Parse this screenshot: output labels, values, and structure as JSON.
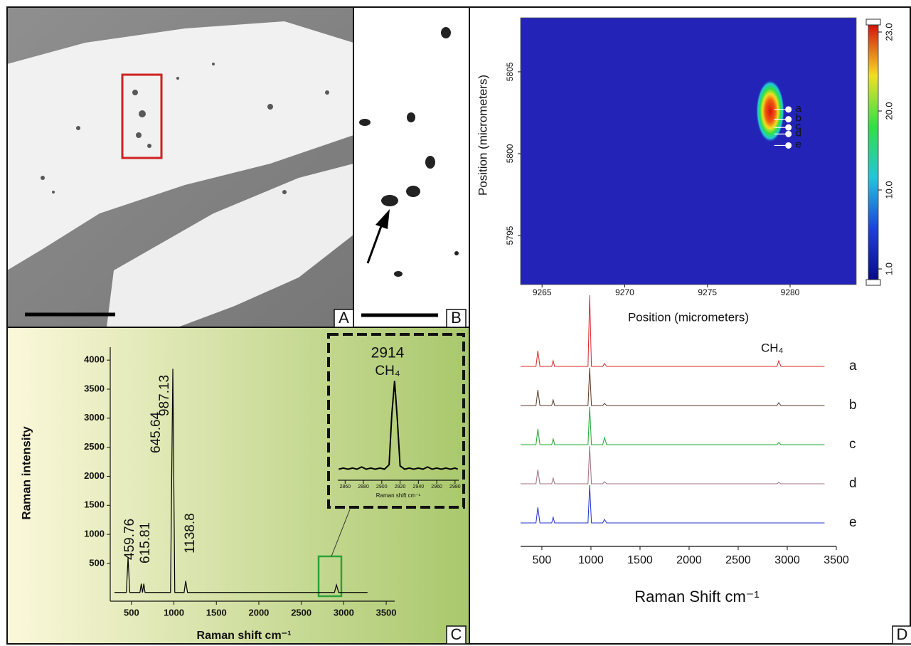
{
  "panels": [
    "A",
    "B",
    "C",
    "D"
  ],
  "chart_data": [
    {
      "type": "line",
      "xlabel": "Raman shift cm⁻¹",
      "ylabel": "Raman intensity",
      "xlim": [
        250,
        3600
      ],
      "ylim": [
        -150,
        4100
      ],
      "xticks": [
        500,
        1000,
        1500,
        2000,
        2500,
        3000,
        3500
      ],
      "yticks": [
        500,
        1000,
        1500,
        2000,
        2500,
        3000,
        3500,
        4000
      ],
      "x": [
        300,
        440,
        459.76,
        480,
        600,
        615.81,
        630,
        645.64,
        660,
        960,
        987.13,
        1010,
        1120,
        1138.8,
        1160,
        2890,
        2914,
        2940,
        3280
      ],
      "series": [
        {
          "color": "#000000",
          "values": [
            0,
            0,
            600,
            0,
            0,
            150,
            0,
            150,
            0,
            0,
            3850,
            0,
            0,
            200,
            0,
            0,
            130,
            0,
            0
          ]
        }
      ],
      "annotations": [
        "459.76",
        "615.81",
        "645.64",
        "987.13",
        "1138.8"
      ],
      "annotation_color": "#e0201b"
    },
    {
      "type": "line",
      "title": "2914",
      "subtitle": "CH₄",
      "xlabel": "Raman shift cm⁻¹",
      "xlim": [
        2852,
        2984
      ],
      "ylim": [
        0,
        1
      ],
      "xticks": [
        2860,
        2880,
        2900,
        2920,
        2940,
        2960,
        2980
      ],
      "x": [
        2853,
        2858,
        2863,
        2868,
        2873,
        2878,
        2883,
        2888,
        2893,
        2898,
        2903,
        2908,
        2911,
        2914,
        2917,
        2920,
        2925,
        2930,
        2935,
        2940,
        2945,
        2950,
        2955,
        2960,
        2965,
        2970,
        2975,
        2980,
        2983
      ],
      "series": [
        {
          "color": "#000000",
          "values": [
            0.1,
            0.11,
            0.1,
            0.11,
            0.1,
            0.12,
            0.1,
            0.11,
            0.1,
            0.11,
            0.1,
            0.14,
            0.6,
            0.9,
            0.55,
            0.13,
            0.1,
            0.11,
            0.1,
            0.11,
            0.1,
            0.12,
            0.1,
            0.11,
            0.1,
            0.11,
            0.1,
            0.11,
            0.1
          ]
        }
      ]
    },
    {
      "type": "heatmap",
      "xlabel": "Position (micrometers)",
      "ylabel": "Position (micrometers)",
      "xlim": [
        9263.7,
        9284
      ],
      "ylim": [
        5792,
        5808.3
      ],
      "xticks": [
        9265,
        9270,
        9275,
        9280
      ],
      "yticks": [
        5795,
        5800,
        5805
      ],
      "colorbar_ticks": [
        {
          "value": 1,
          "label": "1.0"
        },
        {
          "value": 10,
          "label": "10.0"
        },
        {
          "value": 20,
          "label": "20.0"
        },
        {
          "value": 23,
          "label": "23.0"
        }
      ],
      "background": 1,
      "peak": {
        "x": 9278.8,
        "y": 5802.6,
        "value": 23
      },
      "points": {
        "labels": [
          "a",
          "b",
          "c",
          "d",
          "e"
        ],
        "x": [
          9279.9,
          9279.9,
          9279.9,
          9279.9,
          9279.9
        ],
        "y": [
          5802.7,
          5802.1,
          5801.6,
          5801.2,
          5800.5
        ]
      }
    },
    {
      "type": "line",
      "xlabel": "Raman Shift cm⁻¹",
      "annotation": "CH₄",
      "xlim": [
        283,
        3500
      ],
      "ylim": [
        0,
        100
      ],
      "xticks": [
        500,
        1000,
        1500,
        2000,
        2500,
        3000,
        3500
      ],
      "x": [
        283,
        440,
        459,
        480,
        600,
        615,
        630,
        970,
        987,
        1005,
        1120,
        1138,
        1160,
        2895,
        2914,
        2935,
        3380
      ],
      "series": [
        {
          "name": "a",
          "color": "#d9282b",
          "values": [
            0,
            0,
            22,
            0,
            0,
            8,
            0,
            0,
            100,
            0,
            0,
            4,
            0,
            0,
            8,
            0,
            0
          ]
        },
        {
          "name": "b",
          "color": "#5a3a28",
          "values": [
            0,
            0,
            22,
            0,
            0,
            8,
            0,
            0,
            53,
            0,
            0,
            3,
            0,
            0,
            4,
            0,
            0
          ]
        },
        {
          "name": "c",
          "color": "#1fa82f",
          "values": [
            0,
            0,
            22,
            0,
            0,
            8,
            0,
            0,
            53,
            0,
            0,
            10,
            0,
            0,
            3,
            0,
            0
          ]
        },
        {
          "name": "d",
          "color": "#a07080",
          "values": [
            0,
            0,
            20,
            0,
            0,
            8,
            0,
            0,
            53,
            0,
            0,
            3,
            0,
            0,
            2,
            0,
            0
          ]
        },
        {
          "name": "e",
          "color": "#2233cc",
          "values": [
            0,
            0,
            22,
            0,
            0,
            8,
            0,
            0,
            53,
            0,
            0,
            5,
            0,
            0,
            0,
            0,
            0
          ]
        }
      ]
    }
  ]
}
